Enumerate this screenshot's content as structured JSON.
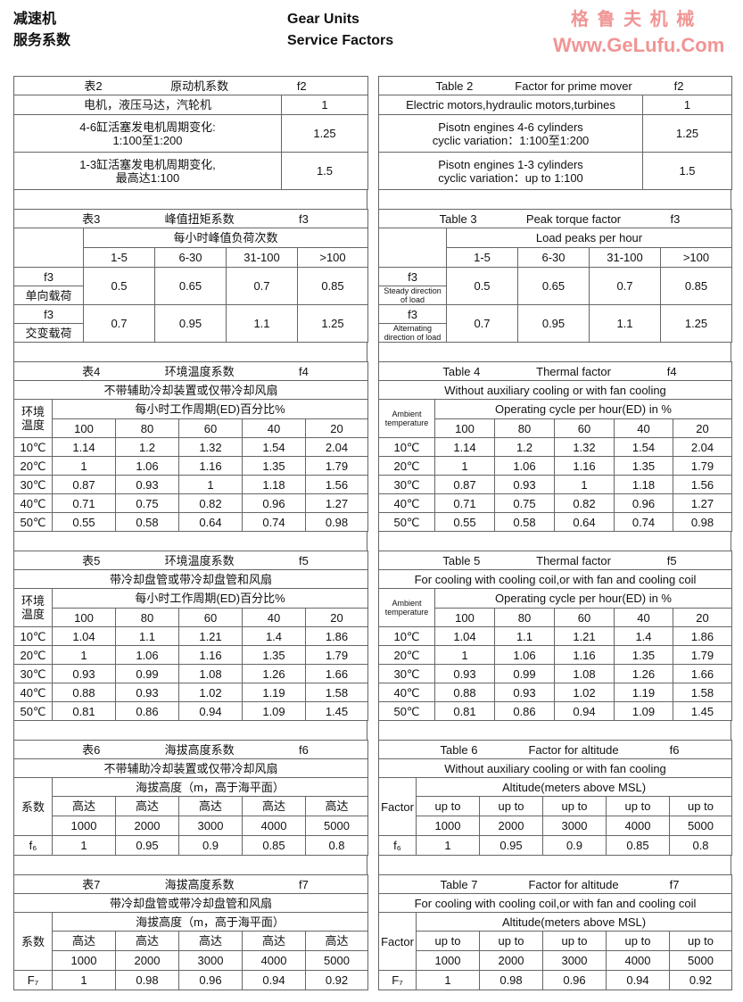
{
  "header": {
    "cn_line1": "减速机",
    "cn_line2": "服务系数",
    "en_line1": "Gear Units",
    "en_line2": "Service Factors"
  },
  "watermark": {
    "cn": "格 鲁 夫 机 械",
    "url": "Www.GeLufu.Com",
    "color": "#e63c3c"
  },
  "left": {
    "t2": {
      "title": [
        "表2",
        "原动机系数",
        "f2"
      ],
      "rows": [
        [
          "电机，液压马达，汽轮机",
          "1"
        ],
        [
          "4-6缸活塞发电机周期变化:\n1:100至1:200",
          "1.25"
        ],
        [
          "1-3缸活塞发电机周期变化,\n最高达1:100",
          "1.5"
        ]
      ]
    },
    "t3": {
      "title": [
        "表3",
        "峰值扭矩系数",
        "f3"
      ],
      "group": "每小时峰值负荷次数",
      "cols": [
        "1-5",
        "6-30",
        "31-100",
        ">100"
      ],
      "rows": [
        {
          "label": "f3",
          "sub": "单向载荷",
          "values": [
            "0.5",
            "0.65",
            "0.7",
            "0.85"
          ]
        },
        {
          "label": "f3",
          "sub": "交变载荷",
          "values": [
            "0.7",
            "0.95",
            "1.1",
            "1.25"
          ]
        }
      ]
    },
    "t4": {
      "title": [
        "表4",
        "环境温度系数",
        "f4"
      ],
      "subtitle": "不带辅助冷却装置或仅带冷却风扇",
      "rowhead": "环境\n温度",
      "group": "每小时工作周期(ED)百分比%",
      "cols": [
        "100",
        "80",
        "60",
        "40",
        "20"
      ],
      "rows": [
        {
          "label": "10℃",
          "values": [
            "1.14",
            "1.2",
            "1.32",
            "1.54",
            "2.04"
          ]
        },
        {
          "label": "20℃",
          "values": [
            "1",
            "1.06",
            "1.16",
            "1.35",
            "1.79"
          ]
        },
        {
          "label": "30℃",
          "values": [
            "0.87",
            "0.93",
            "1",
            "1.18",
            "1.56"
          ]
        },
        {
          "label": "40℃",
          "values": [
            "0.71",
            "0.75",
            "0.82",
            "0.96",
            "1.27"
          ]
        },
        {
          "label": "50℃",
          "values": [
            "0.55",
            "0.58",
            "0.64",
            "0.74",
            "0.98"
          ]
        }
      ]
    },
    "t5": {
      "title": [
        "表5",
        "环境温度系数",
        "f5"
      ],
      "subtitle": "带冷却盘管或带冷却盘管和风扇",
      "rowhead": "环境\n温度",
      "group": "每小时工作周期(ED)百分比%",
      "cols": [
        "100",
        "80",
        "60",
        "40",
        "20"
      ],
      "rows": [
        {
          "label": "10℃",
          "values": [
            "1.04",
            "1.1",
            "1.21",
            "1.4",
            "1.86"
          ]
        },
        {
          "label": "20℃",
          "values": [
            "1",
            "1.06",
            "1.16",
            "1.35",
            "1.79"
          ]
        },
        {
          "label": "30℃",
          "values": [
            "0.93",
            "0.99",
            "1.08",
            "1.26",
            "1.66"
          ]
        },
        {
          "label": "40℃",
          "values": [
            "0.88",
            "0.93",
            "1.02",
            "1.19",
            "1.58"
          ]
        },
        {
          "label": "50℃",
          "values": [
            "0.81",
            "0.86",
            "0.94",
            "1.09",
            "1.45"
          ]
        }
      ]
    },
    "t6": {
      "title": [
        "表6",
        "海拔高度系数",
        "f6"
      ],
      "subtitle": "不带辅助冷却装置或仅带冷却风扇",
      "rowhead": "系数",
      "group": "海拔高度（m，高于海平面）",
      "cols_top": [
        "高达",
        "高达",
        "高达",
        "高达",
        "高达"
      ],
      "cols": [
        "1000",
        "2000",
        "3000",
        "4000",
        "5000"
      ],
      "rows": [
        {
          "label": "f₆",
          "values": [
            "1",
            "0.95",
            "0.9",
            "0.85",
            "0.8"
          ]
        }
      ]
    },
    "t7": {
      "title": [
        "表7",
        "海拔高度系数",
        "f7"
      ],
      "subtitle": "带冷却盘管或带冷却盘管和风扇",
      "rowhead": "系数",
      "group": "海拔高度（m，高于海平面）",
      "cols_top": [
        "高达",
        "高达",
        "高达",
        "高达",
        "高达"
      ],
      "cols": [
        "1000",
        "2000",
        "3000",
        "4000",
        "5000"
      ],
      "rows": [
        {
          "label": "F₇",
          "values": [
            "1",
            "0.98",
            "0.96",
            "0.94",
            "0.92"
          ]
        }
      ]
    }
  },
  "right": {
    "t2": {
      "title": [
        "Table 2",
        "Factor for prime mover",
        "f2"
      ],
      "rows": [
        [
          "Electric motors,hydraulic motors,turbines",
          "1"
        ],
        [
          "Pisotn engines 4-6 cylinders\ncyclic variation：1:100至1:200",
          "1.25"
        ],
        [
          "Pisotn engines 1-3 cylinders\ncyclic variation：up to 1:100",
          "1.5"
        ]
      ]
    },
    "t3": {
      "title": [
        "Table 3",
        "Peak torque factor",
        "f3"
      ],
      "group": "Load peaks per hour",
      "cols": [
        "1-5",
        "6-30",
        "31-100",
        ">100"
      ],
      "rows": [
        {
          "label": "f3",
          "sub": "Steady direction\nof load",
          "values": [
            "0.5",
            "0.65",
            "0.7",
            "0.85"
          ]
        },
        {
          "label": "f3",
          "sub": "Alternating\ndirection of load",
          "values": [
            "0.7",
            "0.95",
            "1.1",
            "1.25"
          ]
        }
      ]
    },
    "t4": {
      "title": [
        "Table 4",
        "Thermal factor",
        "f4"
      ],
      "subtitle": "Without auxiliary cooling or with fan cooling",
      "rowhead": "Ambient\ntemperature",
      "group": "Operating cycle per hour(ED) in %",
      "cols": [
        "100",
        "80",
        "60",
        "40",
        "20"
      ],
      "rows": [
        {
          "label": "10℃",
          "values": [
            "1.14",
            "1.2",
            "1.32",
            "1.54",
            "2.04"
          ]
        },
        {
          "label": "20℃",
          "values": [
            "1",
            "1.06",
            "1.16",
            "1.35",
            "1.79"
          ]
        },
        {
          "label": "30℃",
          "values": [
            "0.87",
            "0.93",
            "1",
            "1.18",
            "1.56"
          ]
        },
        {
          "label": "40℃",
          "values": [
            "0.71",
            "0.75",
            "0.82",
            "0.96",
            "1.27"
          ]
        },
        {
          "label": "50℃",
          "values": [
            "0.55",
            "0.58",
            "0.64",
            "0.74",
            "0.98"
          ]
        }
      ]
    },
    "t5": {
      "title": [
        "Table 5",
        "Thermal factor",
        "f5"
      ],
      "subtitle": "For cooling with cooling coil,or with fan and cooling  coil",
      "rowhead": "Ambient\ntemperature",
      "group": "Operating cycle per hour(ED) in %",
      "cols": [
        "100",
        "80",
        "60",
        "40",
        "20"
      ],
      "rows": [
        {
          "label": "10℃",
          "values": [
            "1.04",
            "1.1",
            "1.21",
            "1.4",
            "1.86"
          ]
        },
        {
          "label": "20℃",
          "values": [
            "1",
            "1.06",
            "1.16",
            "1.35",
            "1.79"
          ]
        },
        {
          "label": "30℃",
          "values": [
            "0.93",
            "0.99",
            "1.08",
            "1.26",
            "1.66"
          ]
        },
        {
          "label": "40℃",
          "values": [
            "0.88",
            "0.93",
            "1.02",
            "1.19",
            "1.58"
          ]
        },
        {
          "label": "50℃",
          "values": [
            "0.81",
            "0.86",
            "0.94",
            "1.09",
            "1.45"
          ]
        }
      ]
    },
    "t6": {
      "title": [
        "Table 6",
        "Factor for altitude",
        "f6"
      ],
      "subtitle": "Without auxiliary cooling or with fan cooling",
      "rowhead": "Factor",
      "group": "Altitude(meters above MSL)",
      "cols_top": [
        "up to",
        "up to",
        "up to",
        "up to",
        "up to"
      ],
      "cols": [
        "1000",
        "2000",
        "3000",
        "4000",
        "5000"
      ],
      "rows": [
        {
          "label": "f₆",
          "values": [
            "1",
            "0.95",
            "0.9",
            "0.85",
            "0.8"
          ]
        }
      ]
    },
    "t7": {
      "title": [
        "Table 7",
        "Factor for altitude",
        "f7"
      ],
      "subtitle": "For cooling with cooling coil,or with fan and cooling  coil",
      "rowhead": "Factor",
      "group": "Altitude(meters above MSL)",
      "cols_top": [
        "up to",
        "up to",
        "up to",
        "up to",
        "up to"
      ],
      "cols": [
        "1000",
        "2000",
        "3000",
        "4000",
        "5000"
      ],
      "rows": [
        {
          "label": "F₇",
          "values": [
            "1",
            "0.98",
            "0.96",
            "0.94",
            "0.92"
          ]
        }
      ]
    }
  }
}
